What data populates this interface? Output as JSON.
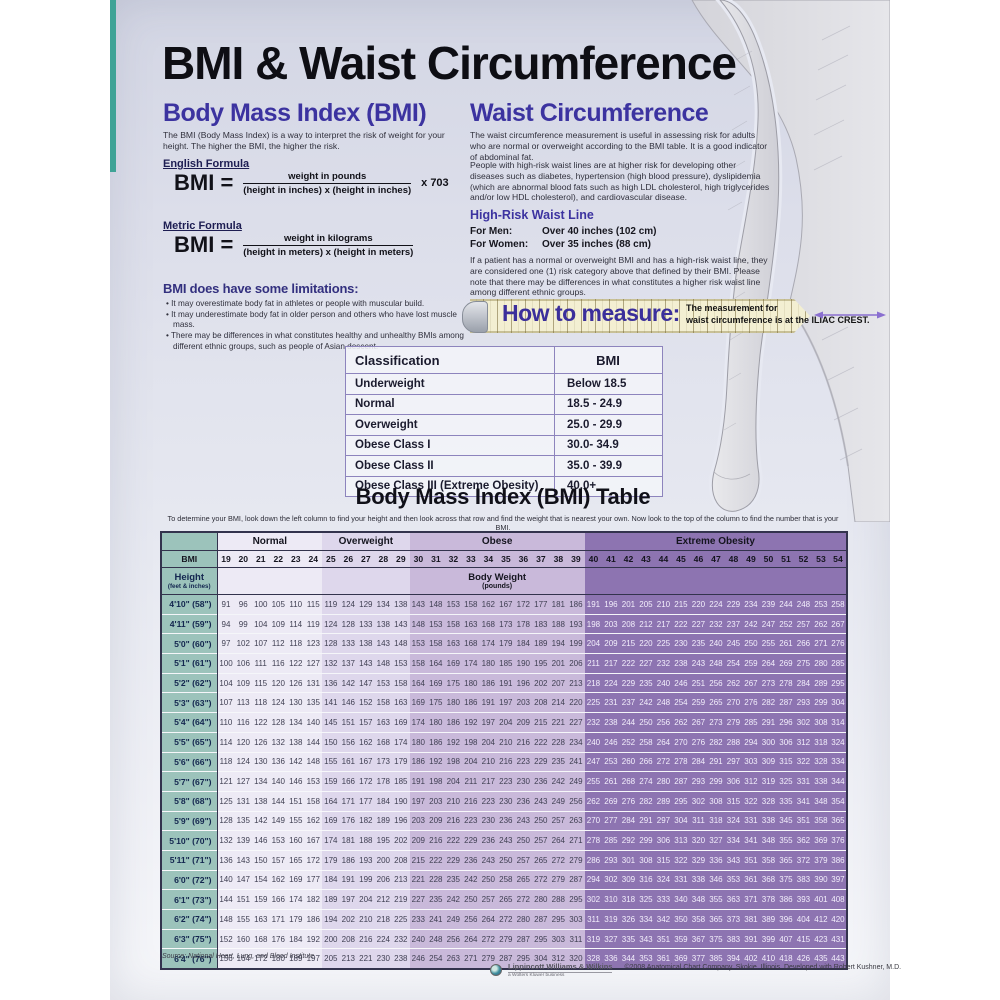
{
  "colors": {
    "accent_purple": "#3c33a0",
    "teal": "#3fa396",
    "normal_bg": "#edeaf5",
    "overweight_bg": "#ded7ec",
    "obese_bg": "#c9b9da",
    "extreme_bg": "#8d74b1",
    "height_col_bg": "#9cc3bb",
    "tape_bg": "#f3efd2"
  },
  "header": {
    "title": "BMI & Waist Circumference"
  },
  "bmi_section": {
    "heading": "Body Mass Index (BMI)",
    "intro": "The BMI (Body Mass Index) is a way to interpret the risk of weight for your height. The higher the BMI, the higher the risk.",
    "english_formula": {
      "label": "English Formula",
      "eq": "BMI =",
      "numerator": "weight in pounds",
      "denominator": "(height in inches) x (height in inches)",
      "suffix": "x 703"
    },
    "metric_formula": {
      "label": "Metric Formula",
      "eq": "BMI =",
      "numerator": "weight in kilograms",
      "denominator": "(height in meters) x (height in meters)"
    },
    "limitations": {
      "heading": "BMI does have some limitations:",
      "bullets": [
        "It may overestimate body fat in athletes or people with muscular build.",
        "It may underestimate body fat in older person and others who have lost muscle mass.",
        "There may be differences in what constitutes healthy and unhealthy BMIs among different ethnic groups, such as people of Asian descent."
      ]
    }
  },
  "waist_section": {
    "heading": "Waist Circumference",
    "para1": "The waist circumference measurement is useful in assessing risk for adults who are normal or overweight according to the BMI table. It is a good indicator of abdominal fat.",
    "para2": "People with high-risk waist lines are at higher risk for developing other diseases such as diabetes, hypertension (high blood pressure), dyslipidemia (which are abnormal blood fats such as high LDL cholesterol, high triglycerides and/or low HDL cholesterol), and cardiovascular disease.",
    "high_risk": {
      "heading": "High-Risk Waist Line",
      "men_label": "For Men:",
      "men_value": "Over 40 inches (102 cm)",
      "women_label": "For Women:",
      "women_value": "Over 35 inches (88 cm)",
      "note": "If a patient has a normal or overweight BMI and has a high-risk waist line, they are considered one (1) risk category above that defined by their BMI. Please note that there may be differences in what constitutes a higher risk waist line among different ethnic groups."
    }
  },
  "how_to_measure": {
    "label": "How to measure:",
    "note_line1": "The measurement for",
    "note_line2": "waist circumference is at the ILIAC CREST."
  },
  "classification": {
    "headers": [
      "Classification",
      "BMI"
    ],
    "rows": [
      {
        "label": "Underweight",
        "value": "Below 18.5"
      },
      {
        "label": "Normal",
        "value": "18.5 - 24.9"
      },
      {
        "label": "Overweight",
        "value": "25.0 - 29.9"
      },
      {
        "label": "Obese Class I",
        "value": "30.0- 34.9"
      },
      {
        "label": "Obese Class II",
        "value": "35.0 - 39.9"
      },
      {
        "label": "Obese Class III (Extreme Obesity)",
        "value": "40.0+"
      }
    ]
  },
  "bmi_table": {
    "title": "Body Mass Index (BMI) Table",
    "instructions": "To determine your BMI, look down the left column to find your height and then look across that row and find the weight that is nearest your own. Now look to the top of the column to find the number that is your BMI.",
    "categories": [
      {
        "key": "normal",
        "label": "Normal",
        "span": 6
      },
      {
        "key": "overweight",
        "label": "Overweight",
        "span": 5
      },
      {
        "key": "obese",
        "label": "Obese",
        "span": 10
      },
      {
        "key": "extreme",
        "label": "Extreme Obesity",
        "span": 15
      }
    ],
    "bmi_label": "BMI",
    "bmi_values": [
      19,
      20,
      21,
      22,
      23,
      24,
      25,
      26,
      27,
      28,
      29,
      30,
      31,
      32,
      33,
      34,
      35,
      36,
      37,
      38,
      39,
      40,
      41,
      42,
      43,
      44,
      45,
      46,
      47,
      48,
      49,
      50,
      51,
      52,
      53,
      54
    ],
    "height_label": "Height",
    "height_sublabel": "(feet & inches)",
    "body_weight_label": "Body Weight",
    "body_weight_sublabel": "(pounds)",
    "rows": [
      {
        "height": "4'10\" (58\")",
        "values": [
          91,
          96,
          100,
          105,
          110,
          115,
          119,
          124,
          129,
          134,
          138,
          143,
          148,
          153,
          158,
          162,
          167,
          172,
          177,
          181,
          186,
          191,
          196,
          201,
          205,
          210,
          215,
          220,
          224,
          229,
          234,
          239,
          244,
          248,
          253,
          258
        ]
      },
      {
        "height": "4'11\" (59\")",
        "values": [
          94,
          99,
          104,
          109,
          114,
          119,
          124,
          128,
          133,
          138,
          143,
          148,
          153,
          158,
          163,
          168,
          173,
          178,
          183,
          188,
          193,
          198,
          203,
          208,
          212,
          217,
          222,
          227,
          232,
          237,
          242,
          247,
          252,
          257,
          262,
          267
        ]
      },
      {
        "height": "5'0\" (60\")",
        "values": [
          97,
          102,
          107,
          112,
          118,
          123,
          128,
          133,
          138,
          143,
          148,
          153,
          158,
          163,
          168,
          174,
          179,
          184,
          189,
          194,
          199,
          204,
          209,
          215,
          220,
          225,
          230,
          235,
          240,
          245,
          250,
          255,
          261,
          266,
          271,
          276
        ]
      },
      {
        "height": "5'1\" (61\")",
        "values": [
          100,
          106,
          111,
          116,
          122,
          127,
          132,
          137,
          143,
          148,
          153,
          158,
          164,
          169,
          174,
          180,
          185,
          190,
          195,
          201,
          206,
          211,
          217,
          222,
          227,
          232,
          238,
          243,
          248,
          254,
          259,
          264,
          269,
          275,
          280,
          285
        ]
      },
      {
        "height": "5'2\" (62\")",
        "values": [
          104,
          109,
          115,
          120,
          126,
          131,
          136,
          142,
          147,
          153,
          158,
          164,
          169,
          175,
          180,
          186,
          191,
          196,
          202,
          207,
          213,
          218,
          224,
          229,
          235,
          240,
          246,
          251,
          256,
          262,
          267,
          273,
          278,
          284,
          289,
          295
        ]
      },
      {
        "height": "5'3\" (63\")",
        "values": [
          107,
          113,
          118,
          124,
          130,
          135,
          141,
          146,
          152,
          158,
          163,
          169,
          175,
          180,
          186,
          191,
          197,
          203,
          208,
          214,
          220,
          225,
          231,
          237,
          242,
          248,
          254,
          259,
          265,
          270,
          276,
          282,
          287,
          293,
          299,
          304
        ]
      },
      {
        "height": "5'4\" (64\")",
        "values": [
          110,
          116,
          122,
          128,
          134,
          140,
          145,
          151,
          157,
          163,
          169,
          174,
          180,
          186,
          192,
          197,
          204,
          209,
          215,
          221,
          227,
          232,
          238,
          244,
          250,
          256,
          262,
          267,
          273,
          279,
          285,
          291,
          296,
          302,
          308,
          314
        ]
      },
      {
        "height": "5'5\" (65\")",
        "values": [
          114,
          120,
          126,
          132,
          138,
          144,
          150,
          156,
          162,
          168,
          174,
          180,
          186,
          192,
          198,
          204,
          210,
          216,
          222,
          228,
          234,
          240,
          246,
          252,
          258,
          264,
          270,
          276,
          282,
          288,
          294,
          300,
          306,
          312,
          318,
          324
        ]
      },
      {
        "height": "5'6\" (66\")",
        "values": [
          118,
          124,
          130,
          136,
          142,
          148,
          155,
          161,
          167,
          173,
          179,
          186,
          192,
          198,
          204,
          210,
          216,
          223,
          229,
          235,
          241,
          247,
          253,
          260,
          266,
          272,
          278,
          284,
          291,
          297,
          303,
          309,
          315,
          322,
          328,
          334
        ]
      },
      {
        "height": "5'7\" (67\")",
        "values": [
          121,
          127,
          134,
          140,
          146,
          153,
          159,
          166,
          172,
          178,
          185,
          191,
          198,
          204,
          211,
          217,
          223,
          230,
          236,
          242,
          249,
          255,
          261,
          268,
          274,
          280,
          287,
          293,
          299,
          306,
          312,
          319,
          325,
          331,
          338,
          344
        ]
      },
      {
        "height": "5'8\" (68\")",
        "values": [
          125,
          131,
          138,
          144,
          151,
          158,
          164,
          171,
          177,
          184,
          190,
          197,
          203,
          210,
          216,
          223,
          230,
          236,
          243,
          249,
          256,
          262,
          269,
          276,
          282,
          289,
          295,
          302,
          308,
          315,
          322,
          328,
          335,
          341,
          348,
          354
        ]
      },
      {
        "height": "5'9\" (69\")",
        "values": [
          128,
          135,
          142,
          149,
          155,
          162,
          169,
          176,
          182,
          189,
          196,
          203,
          209,
          216,
          223,
          230,
          236,
          243,
          250,
          257,
          263,
          270,
          277,
          284,
          291,
          297,
          304,
          311,
          318,
          324,
          331,
          338,
          345,
          351,
          358,
          365
        ]
      },
      {
        "height": "5'10\" (70\")",
        "values": [
          132,
          139,
          146,
          153,
          160,
          167,
          174,
          181,
          188,
          195,
          202,
          209,
          216,
          222,
          229,
          236,
          243,
          250,
          257,
          264,
          271,
          278,
          285,
          292,
          299,
          306,
          313,
          320,
          327,
          334,
          341,
          348,
          355,
          362,
          369,
          376
        ]
      },
      {
        "height": "5'11\" (71\")",
        "values": [
          136,
          143,
          150,
          157,
          165,
          172,
          179,
          186,
          193,
          200,
          208,
          215,
          222,
          229,
          236,
          243,
          250,
          257,
          265,
          272,
          279,
          286,
          293,
          301,
          308,
          315,
          322,
          329,
          336,
          343,
          351,
          358,
          365,
          372,
          379,
          386
        ]
      },
      {
        "height": "6'0\" (72\")",
        "values": [
          140,
          147,
          154,
          162,
          169,
          177,
          184,
          191,
          199,
          206,
          213,
          221,
          228,
          235,
          242,
          250,
          258,
          265,
          272,
          279,
          287,
          294,
          302,
          309,
          316,
          324,
          331,
          338,
          346,
          353,
          361,
          368,
          375,
          383,
          390,
          397
        ]
      },
      {
        "height": "6'1\" (73\")",
        "values": [
          144,
          151,
          159,
          166,
          174,
          182,
          189,
          197,
          204,
          212,
          219,
          227,
          235,
          242,
          250,
          257,
          265,
          272,
          280,
          288,
          295,
          302,
          310,
          318,
          325,
          333,
          340,
          348,
          355,
          363,
          371,
          378,
          386,
          393,
          401,
          408
        ]
      },
      {
        "height": "6'2\" (74\")",
        "values": [
          148,
          155,
          163,
          171,
          179,
          186,
          194,
          202,
          210,
          218,
          225,
          233,
          241,
          249,
          256,
          264,
          272,
          280,
          287,
          295,
          303,
          311,
          319,
          326,
          334,
          342,
          350,
          358,
          365,
          373,
          381,
          389,
          396,
          404,
          412,
          420
        ]
      },
      {
        "height": "6'3\" (75\")",
        "values": [
          152,
          160,
          168,
          176,
          184,
          192,
          200,
          208,
          216,
          224,
          232,
          240,
          248,
          256,
          264,
          272,
          279,
          287,
          295,
          303,
          311,
          319,
          327,
          335,
          343,
          351,
          359,
          367,
          375,
          383,
          391,
          399,
          407,
          415,
          423,
          431
        ]
      },
      {
        "height": "6'4\" (76\")",
        "values": [
          156,
          164,
          172,
          180,
          189,
          197,
          205,
          213,
          221,
          230,
          238,
          246,
          254,
          263,
          271,
          279,
          287,
          295,
          304,
          312,
          320,
          328,
          336,
          344,
          353,
          361,
          369,
          377,
          385,
          394,
          402,
          410,
          418,
          426,
          435,
          443
        ]
      }
    ]
  },
  "source": "Source: National Heart, Lung, and Blood Institute.",
  "footer": {
    "publisher": "Lippincott Williams & Wilkins",
    "tagline": "a Wolters Kluwer business",
    "copyright": "©2008 Anatomical Chart Company, Skokie, Illinois. Developed with Robert Kushner, M.D."
  }
}
